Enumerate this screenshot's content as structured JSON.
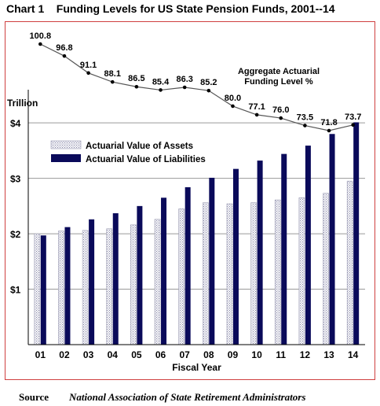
{
  "header": {
    "title": "Chart 1    Funding Levels for US State Pension Funds, 2001--14"
  },
  "source": {
    "label": "Source",
    "text": "National Association of State Retirement Administrators"
  },
  "colors": {
    "frame": "#d04040",
    "assets": "#e4e4ea",
    "assets_border": "#9a9ab2",
    "liabilities": "#0a0a5a",
    "axis": "#000000"
  },
  "chart_data": {
    "type": "bar",
    "categories": [
      "01",
      "02",
      "03",
      "04",
      "05",
      "06",
      "07",
      "08",
      "09",
      "10",
      "11",
      "12",
      "13",
      "14"
    ],
    "ylabel": "Trillion",
    "xlabel": "Fiscal Year",
    "ylim": [
      0,
      4.4
    ],
    "yticks": [
      1,
      2,
      3,
      4
    ],
    "ytick_labels": [
      "$1",
      "$2",
      "$3",
      "$4"
    ],
    "grid": "horizontal",
    "legend_position": "top-left",
    "series": [
      {
        "name": "Actuarial Value of Assets",
        "values": [
          2.0,
          2.05,
          2.06,
          2.09,
          2.16,
          2.26,
          2.45,
          2.56,
          2.54,
          2.56,
          2.61,
          2.65,
          2.73,
          2.95
        ]
      },
      {
        "name": "Actuarial Value of Liabilities",
        "values": [
          1.97,
          2.12,
          2.26,
          2.37,
          2.5,
          2.65,
          2.84,
          3.01,
          3.17,
          3.32,
          3.44,
          3.59,
          3.8,
          4.01
        ]
      }
    ],
    "line_series": {
      "name": "Aggregate Actuarial Funding Level %",
      "name_lines": [
        "Aggregate Actuarial",
        "Funding Level %"
      ],
      "values": [
        100.8,
        96.8,
        91.1,
        88.1,
        86.5,
        85.4,
        86.3,
        85.2,
        80.0,
        77.1,
        76.0,
        73.5,
        71.8,
        73.7
      ],
      "labels": [
        "100.8",
        "96.8",
        "91.1",
        "88.1",
        "86.5",
        "85.4",
        "86.3",
        "85.2",
        "80.0",
        "77.1",
        "76.0",
        "73.5",
        "71.8",
        "73.7"
      ]
    }
  }
}
